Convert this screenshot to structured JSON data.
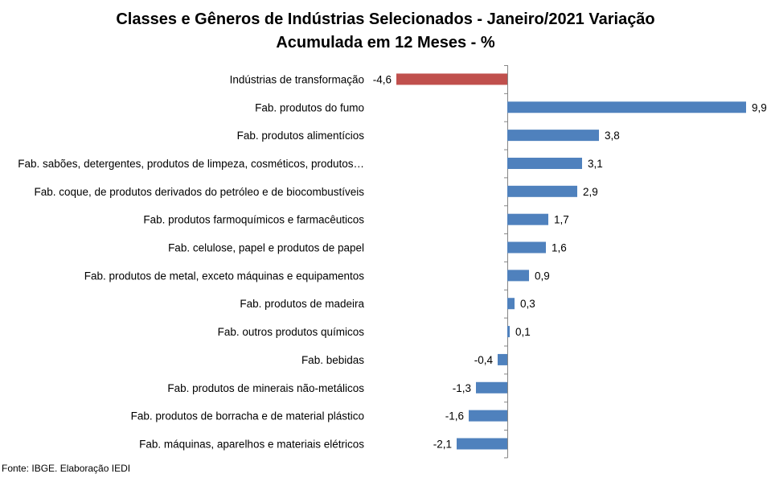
{
  "chart_data": {
    "type": "bar",
    "orientation": "horizontal",
    "title_line1": "Classes e Gêneros de Indústrias Selecionados - Janeiro/2021 Variação",
    "title_line2": "Acumulada em 12 Meses - %",
    "categories": [
      "Indústrias de transformação",
      "Fab. produtos do fumo",
      "Fab. produtos alimentícios",
      "Fab. sabões, detergentes, produtos de limpeza, cosméticos, produtos…",
      "Fab. coque, de produtos derivados do petróleo e de biocombustíveis",
      "Fab. produtos farmoquímicos e farmacêuticos",
      "Fab. celulose, papel e produtos de papel",
      "Fab. produtos de metal, exceto máquinas e equipamentos",
      "Fab. produtos de madeira",
      "Fab. outros produtos químicos",
      "Fab. bebidas",
      "Fab. produtos de minerais não-metálicos",
      "Fab. produtos de borracha e de material plástico",
      "Fab. máquinas, aparelhos e materiais elétricos"
    ],
    "values": [
      -4.6,
      9.9,
      3.8,
      3.1,
      2.9,
      1.7,
      1.6,
      0.9,
      0.3,
      0.1,
      -0.4,
      -1.3,
      -1.6,
      -2.1
    ],
    "value_labels": [
      "-4,6",
      "9,9",
      "3,8",
      "3,1",
      "2,9",
      "1,7",
      "1,6",
      "0,9",
      "0,3",
      "0,1",
      "-0,4",
      "-1,3",
      "-1,6",
      "-2,1"
    ],
    "highlight_index": 0,
    "colors": {
      "highlight": "#C0504D",
      "bar": "#4F81BD",
      "axis": "#868686"
    },
    "grid": false,
    "legend": "none"
  },
  "source": "Fonte: IBGE. Elaboração IEDI"
}
